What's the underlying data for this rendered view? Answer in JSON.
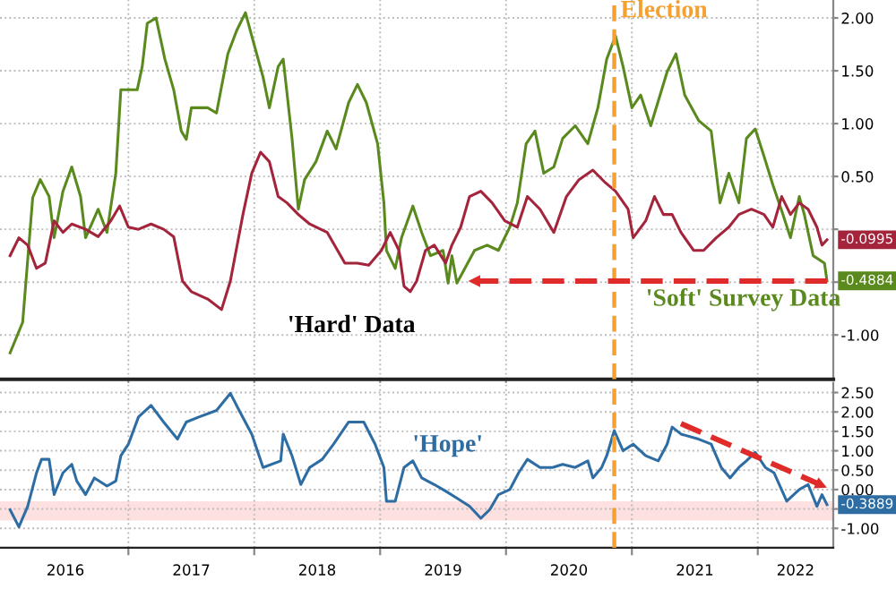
{
  "chart_data": [
    {
      "type": "line",
      "xlim": [
        2015.98,
        2022.6
      ],
      "ylim": [
        -1.42,
        2.17
      ],
      "xticks": [
        {
          "value": 2017,
          "label": null
        },
        {
          "value": 2018,
          "label": null
        },
        {
          "value": 2019,
          "label": null
        },
        {
          "value": 2020,
          "label": null
        },
        {
          "value": 2021,
          "label": null
        },
        {
          "value": 2022,
          "label": null
        }
      ],
      "yticks": [
        {
          "value": -1.0,
          "label": "-1.00"
        },
        {
          "value": -0.5,
          "label": null
        },
        {
          "value": 0.0,
          "label": null
        },
        {
          "value": 0.5,
          "label": "0.50"
        },
        {
          "value": 1.0,
          "label": "1.00"
        },
        {
          "value": 1.5,
          "label": "1.50"
        },
        {
          "value": 2.0,
          "label": "2.00"
        }
      ],
      "tick_labels": "y",
      "grid": true,
      "series": [
        {
          "color": "#5a8a1e",
          "x": [
            2016.06,
            2016.16,
            2016.24,
            2016.3,
            2016.37,
            2016.41,
            2016.48,
            2016.55,
            2016.62,
            2016.66,
            2016.76,
            2016.83,
            2016.9,
            2016.94,
            2017.07,
            2017.11,
            2017.15,
            2017.22,
            2017.29,
            2017.36,
            2017.42,
            2017.46,
            2017.5,
            2017.63,
            2017.7,
            2017.79,
            2017.86,
            2017.93,
            2017.98,
            2018.07,
            2018.12,
            2018.19,
            2018.23,
            2018.3,
            2018.35,
            2018.4,
            2018.49,
            2018.58,
            2018.65,
            2018.75,
            2018.82,
            2018.89,
            2018.98,
            2019.03,
            2019.05,
            2019.12,
            2019.17,
            2019.26,
            2019.33,
            2019.4,
            2019.5,
            2019.54,
            2019.57,
            2019.61,
            2019.75,
            2019.85,
            2019.94,
            2020.03,
            2020.09,
            2020.16,
            2020.23,
            2020.3,
            2020.38,
            2020.45,
            2020.55,
            2020.65,
            2020.73,
            2020.8,
            2020.87,
            2020.93,
            2021.0,
            2021.07,
            2021.15,
            2021.28,
            2021.35,
            2021.42,
            2021.53,
            2021.63,
            2021.7,
            2021.77,
            2021.85,
            2021.91,
            2021.98,
            2022.05,
            2022.12,
            2022.2,
            2022.26,
            2022.33,
            2022.37,
            2022.44,
            2022.53,
            2022.55
          ],
          "values": [
            -1.17,
            -0.88,
            0.3,
            0.47,
            0.31,
            -0.08,
            0.36,
            0.59,
            0.31,
            -0.08,
            0.19,
            -0.03,
            0.53,
            1.32,
            1.32,
            1.54,
            1.95,
            2.0,
            1.61,
            1.32,
            0.93,
            0.85,
            1.15,
            1.15,
            1.1,
            1.66,
            1.88,
            2.05,
            1.83,
            1.44,
            1.15,
            1.54,
            1.61,
            0.86,
            0.19,
            0.47,
            0.64,
            0.93,
            0.76,
            1.2,
            1.37,
            1.2,
            0.81,
            0.25,
            -0.2,
            -0.37,
            -0.08,
            0.22,
            -0.03,
            -0.25,
            -0.2,
            -0.51,
            -0.25,
            -0.51,
            -0.2,
            -0.15,
            -0.2,
            0.02,
            0.25,
            0.81,
            0.93,
            0.53,
            0.59,
            0.86,
            0.98,
            0.81,
            1.15,
            1.61,
            1.83,
            1.54,
            1.15,
            1.27,
            0.98,
            1.49,
            1.66,
            1.27,
            1.03,
            0.93,
            0.25,
            0.53,
            0.25,
            0.86,
            0.95,
            0.69,
            0.42,
            0.14,
            -0.08,
            0.31,
            0.14,
            -0.25,
            -0.32,
            -0.4884
          ],
          "value_labels": [
            null,
            null,
            null,
            null,
            null,
            null,
            null,
            null,
            null,
            null,
            null,
            null,
            null,
            null,
            null,
            null,
            null,
            null,
            null,
            null,
            null,
            null,
            null,
            null,
            null,
            null,
            null,
            null,
            null,
            null,
            null,
            null,
            null,
            null,
            null,
            null,
            null,
            null,
            null,
            null,
            null,
            null,
            null,
            null,
            null,
            null,
            null,
            null,
            null,
            null,
            null,
            null,
            null,
            null,
            null,
            null,
            null,
            null,
            null,
            null,
            null,
            null,
            null,
            null,
            null,
            null,
            null,
            null,
            null,
            null,
            null,
            null,
            null,
            null,
            null,
            null,
            null,
            null,
            null,
            null,
            null,
            null,
            null,
            null,
            null,
            null,
            null,
            null,
            null,
            null,
            null,
            "-0.4884"
          ]
        },
        {
          "color": "#a3243b",
          "x": [
            2016.06,
            2016.13,
            2016.2,
            2016.27,
            2016.34,
            2016.41,
            2016.48,
            2016.55,
            2016.66,
            2016.76,
            2016.86,
            2016.93,
            2017.0,
            2017.08,
            2017.18,
            2017.28,
            2017.36,
            2017.43,
            2017.5,
            2017.63,
            2017.74,
            2017.81,
            2017.91,
            2017.98,
            2018.05,
            2018.12,
            2018.19,
            2018.26,
            2018.35,
            2018.44,
            2018.58,
            2018.72,
            2018.82,
            2018.91,
            2019.01,
            2019.08,
            2019.15,
            2019.19,
            2019.24,
            2019.29,
            2019.36,
            2019.43,
            2019.52,
            2019.57,
            2019.64,
            2019.71,
            2019.8,
            2019.89,
            2019.99,
            2020.09,
            2020.17,
            2020.27,
            2020.38,
            2020.48,
            2020.58,
            2020.69,
            2020.79,
            2020.87,
            2020.97,
            2021.01,
            2021.11,
            2021.18,
            2021.25,
            2021.32,
            2021.39,
            2021.49,
            2021.57,
            2021.67,
            2021.77,
            2021.85,
            2021.95,
            2022.05,
            2022.12,
            2022.19,
            2022.26,
            2022.33,
            2022.4,
            2022.47,
            2022.51,
            2022.55
          ],
          "values": [
            -0.25,
            -0.08,
            -0.15,
            -0.37,
            -0.32,
            0.08,
            -0.03,
            0.05,
            0.0,
            -0.07,
            0.08,
            0.22,
            0.02,
            0.0,
            0.05,
            0.0,
            -0.07,
            -0.49,
            -0.59,
            -0.66,
            -0.76,
            -0.49,
            0.14,
            0.53,
            0.73,
            0.64,
            0.31,
            0.25,
            0.14,
            0.05,
            -0.03,
            -0.32,
            -0.32,
            -0.34,
            -0.2,
            -0.03,
            -0.2,
            -0.54,
            -0.59,
            -0.49,
            -0.2,
            -0.15,
            -0.32,
            -0.15,
            0.02,
            0.31,
            0.36,
            0.25,
            0.08,
            0.02,
            0.31,
            0.19,
            -0.03,
            0.31,
            0.47,
            0.56,
            0.44,
            0.36,
            0.19,
            -0.08,
            0.08,
            0.31,
            0.14,
            0.14,
            -0.03,
            -0.2,
            -0.2,
            -0.08,
            0.02,
            0.14,
            0.19,
            0.14,
            0.02,
            0.31,
            0.14,
            0.25,
            0.19,
            0.02,
            -0.15,
            -0.0995
          ],
          "value_labels": [
            null,
            null,
            null,
            null,
            null,
            null,
            null,
            null,
            null,
            null,
            null,
            null,
            null,
            null,
            null,
            null,
            null,
            null,
            null,
            null,
            null,
            null,
            null,
            null,
            null,
            null,
            null,
            null,
            null,
            null,
            null,
            null,
            null,
            null,
            null,
            null,
            null,
            null,
            null,
            null,
            null,
            null,
            null,
            null,
            null,
            null,
            null,
            null,
            null,
            null,
            null,
            null,
            null,
            null,
            null,
            null,
            null,
            null,
            null,
            null,
            null,
            null,
            null,
            null,
            null,
            null,
            null,
            null,
            null,
            null,
            null,
            null,
            null,
            null,
            null,
            null,
            null,
            null,
            null,
            "-0.0995"
          ]
        },
        {
          "color": "#e02b2b",
          "line_style": "dashed",
          "x": [
            2022.55,
            2019.7
          ],
          "values": [
            -0.49,
            -0.49
          ]
        }
      ],
      "ref_lines": [
        {
          "axis": "x",
          "value": 2020.86,
          "label": "Election",
          "color": "#f5a030",
          "line_style": "dashed"
        }
      ],
      "annotations": [
        "'Hard' Data",
        "'Soft' Survey Data"
      ]
    },
    {
      "type": "line",
      "xlim": [
        2015.98,
        2022.6
      ],
      "ylim": [
        -1.5,
        2.75
      ],
      "xticks": [
        {
          "value": 2016.5,
          "label": "2016"
        },
        {
          "value": 2017,
          "label": null
        },
        {
          "value": 2017.5,
          "label": "2017"
        },
        {
          "value": 2018,
          "label": null
        },
        {
          "value": 2018.5,
          "label": "2018"
        },
        {
          "value": 2019,
          "label": null
        },
        {
          "value": 2019.5,
          "label": "2019"
        },
        {
          "value": 2020,
          "label": null
        },
        {
          "value": 2020.5,
          "label": "2020"
        },
        {
          "value": 2021,
          "label": null
        },
        {
          "value": 2021.5,
          "label": "2021"
        },
        {
          "value": 2022,
          "label": null
        },
        {
          "value": 2022.3,
          "label": "2022"
        }
      ],
      "yticks": [
        {
          "value": -1.0,
          "label": "-1.00"
        },
        {
          "value": -0.5,
          "label": null
        },
        {
          "value": 0.0,
          "label": "0.00"
        },
        {
          "value": 0.5,
          "label": "0.50"
        },
        {
          "value": 1.0,
          "label": "1.00"
        },
        {
          "value": 1.5,
          "label": "1.50"
        },
        {
          "value": 2.0,
          "label": "2.00"
        },
        {
          "value": 2.5,
          "label": "2.50"
        }
      ],
      "grid": true,
      "series": [
        {
          "color": "#2e6da4",
          "x": [
            2016.06,
            2016.13,
            2016.2,
            2016.27,
            2016.31,
            2016.37,
            2016.41,
            2016.48,
            2016.55,
            2016.59,
            2016.66,
            2016.73,
            2016.83,
            2016.9,
            2016.94,
            2017.0,
            2017.08,
            2017.18,
            2017.28,
            2017.39,
            2017.46,
            2017.56,
            2017.7,
            2017.81,
            2017.88,
            2017.98,
            2018.07,
            2018.21,
            2018.23,
            2018.3,
            2018.37,
            2018.44,
            2018.54,
            2018.63,
            2018.75,
            2018.87,
            2018.96,
            2019.03,
            2019.05,
            2019.12,
            2019.19,
            2019.26,
            2019.33,
            2019.43,
            2019.52,
            2019.61,
            2019.71,
            2019.8,
            2019.87,
            2019.94,
            2020.03,
            2020.1,
            2020.17,
            2020.27,
            2020.37,
            2020.45,
            2020.55,
            2020.65,
            2020.69,
            2020.76,
            2020.8,
            2020.86,
            2020.93,
            2021.01,
            2021.11,
            2021.21,
            2021.28,
            2021.32,
            2021.39,
            2021.53,
            2021.63,
            2021.71,
            2021.78,
            2021.85,
            2021.91,
            2021.98,
            2022.06,
            2022.13,
            2022.23,
            2022.33,
            2022.4,
            2022.47,
            2022.51,
            2022.55
          ],
          "values": [
            -0.52,
            -0.96,
            -0.43,
            0.43,
            0.78,
            0.78,
            -0.13,
            0.43,
            0.65,
            0.22,
            -0.13,
            0.3,
            0.09,
            0.22,
            0.87,
            1.17,
            1.87,
            2.17,
            1.74,
            1.3,
            1.74,
            1.87,
            2.04,
            2.48,
            2.04,
            1.43,
            0.57,
            0.74,
            1.43,
            0.87,
            0.13,
            0.57,
            0.78,
            1.17,
            1.74,
            1.74,
            1.17,
            0.57,
            -0.3,
            -0.3,
            0.57,
            0.74,
            0.3,
            0.13,
            -0.04,
            -0.22,
            -0.43,
            -0.74,
            -0.52,
            -0.13,
            0.0,
            0.43,
            0.78,
            0.57,
            0.57,
            0.65,
            0.57,
            0.74,
            0.3,
            0.57,
            0.87,
            1.52,
            1.0,
            1.17,
            0.87,
            0.74,
            1.17,
            1.61,
            1.43,
            1.3,
            1.17,
            0.57,
            0.3,
            0.57,
            0.74,
            0.96,
            0.57,
            0.43,
            -0.3,
            0.0,
            0.13,
            -0.43,
            -0.13,
            -0.3889
          ],
          "value_labels": [
            null,
            null,
            null,
            null,
            null,
            null,
            null,
            null,
            null,
            null,
            null,
            null,
            null,
            null,
            null,
            null,
            null,
            null,
            null,
            null,
            null,
            null,
            null,
            null,
            null,
            null,
            null,
            null,
            null,
            null,
            null,
            null,
            null,
            null,
            null,
            null,
            null,
            null,
            null,
            null,
            null,
            null,
            null,
            null,
            null,
            null,
            null,
            null,
            null,
            null,
            null,
            null,
            null,
            null,
            null,
            null,
            null,
            null,
            null,
            null,
            null,
            null,
            null,
            null,
            null,
            null,
            null,
            null,
            null,
            null,
            null,
            null,
            null,
            null,
            null,
            null,
            null,
            null,
            null,
            null,
            null,
            null,
            null,
            "-0.3889"
          ]
        },
        {
          "color": "#e02b2b",
          "line_style": "dashed",
          "x": [
            2021.39,
            2022.55
          ],
          "values": [
            1.7,
            0.05
          ]
        }
      ],
      "ref_lines": [
        {
          "axis": "x",
          "value": 2020.86,
          "color": "#f5a030",
          "line_style": "dashed"
        }
      ],
      "bands": [
        {
          "axis": "y",
          "from": -0.8,
          "to": -0.3,
          "color": "#fde0e0"
        }
      ],
      "annotations": [
        "'Hope'"
      ]
    }
  ]
}
